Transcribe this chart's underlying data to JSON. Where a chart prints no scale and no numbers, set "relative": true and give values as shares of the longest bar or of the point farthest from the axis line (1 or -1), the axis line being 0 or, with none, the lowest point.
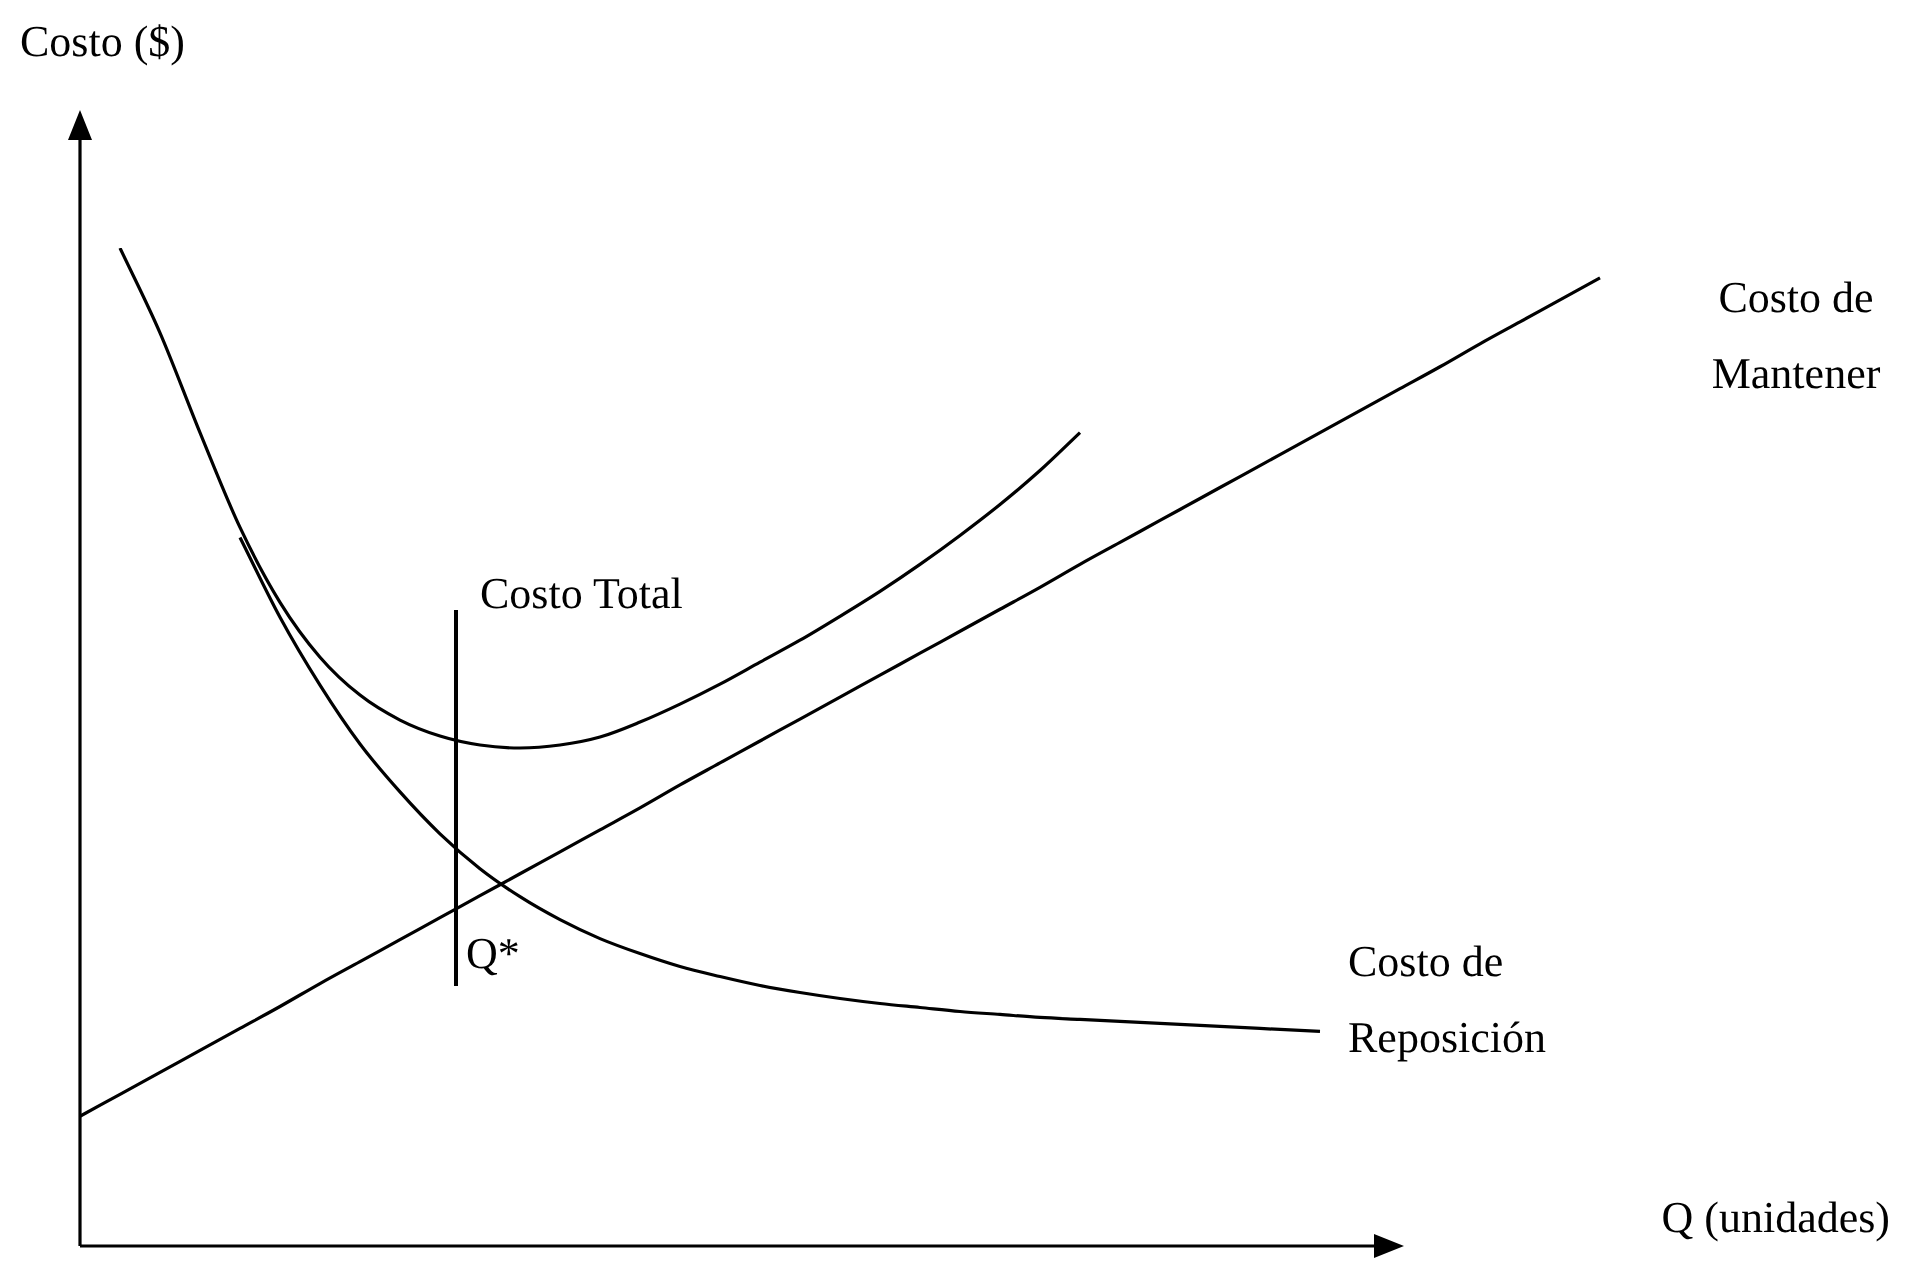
{
  "chart_data": {
    "type": "line",
    "relative": true,
    "ylabel": "Costo ($)",
    "xlabel": "Q (unidades)",
    "grid": false,
    "legend": false,
    "marker": "none",
    "line_style": "solid",
    "categories": [
      null,
      null,
      null,
      null,
      null,
      null,
      null,
      null,
      null,
      null,
      null,
      null,
      null,
      null,
      null,
      null,
      null,
      null,
      null,
      null,
      null,
      null,
      null,
      null,
      null,
      null,
      null,
      null,
      null,
      null,
      null,
      null,
      null,
      null,
      null,
      null,
      null,
      null,
      null
    ],
    "series": [
      {
        "name": "Costo Total",
        "color": "#000000",
        "values": [
          null,
          1.0,
          0.915,
          0.815,
          0.72,
          0.645,
          0.59,
          0.552,
          0.527,
          0.511,
          0.502,
          0.499,
          0.502,
          0.51,
          0.525,
          0.543,
          0.563,
          0.585,
          0.607,
          0.631,
          0.656,
          0.683,
          0.712,
          0.743,
          0.777,
          0.815,
          null,
          null,
          null,
          null,
          null,
          null,
          null,
          null,
          null,
          null,
          null,
          null,
          null
        ]
      },
      {
        "name": "Costo de Mantener",
        "color": "#000000",
        "values": [
          0.13,
          0.152,
          0.174,
          0.196,
          0.218,
          0.24,
          0.263,
          0.285,
          0.307,
          0.329,
          0.351,
          0.373,
          0.395,
          0.417,
          0.439,
          0.462,
          0.484,
          0.506,
          0.528,
          0.55,
          0.572,
          0.594,
          0.616,
          0.638,
          0.66,
          0.683,
          0.705,
          0.727,
          0.749,
          0.771,
          0.793,
          0.815,
          0.837,
          0.859,
          0.881,
          0.904,
          0.926,
          0.948,
          0.97
        ]
      },
      {
        "name": "Costo de Reposición",
        "color": "#000000",
        "values": [
          null,
          null,
          null,
          null,
          0.71,
          0.63,
          0.562,
          0.503,
          0.455,
          0.413,
          0.378,
          0.35,
          0.327,
          0.308,
          0.293,
          0.28,
          0.27,
          0.261,
          0.254,
          0.248,
          0.243,
          0.239,
          0.235,
          0.232,
          0.229,
          0.227,
          0.225,
          0.223,
          0.221,
          0.219,
          0.217,
          0.215,
          null,
          null,
          null,
          null,
          null,
          null,
          null
        ]
      }
    ],
    "annotations": [
      "Q*"
    ]
  }
}
